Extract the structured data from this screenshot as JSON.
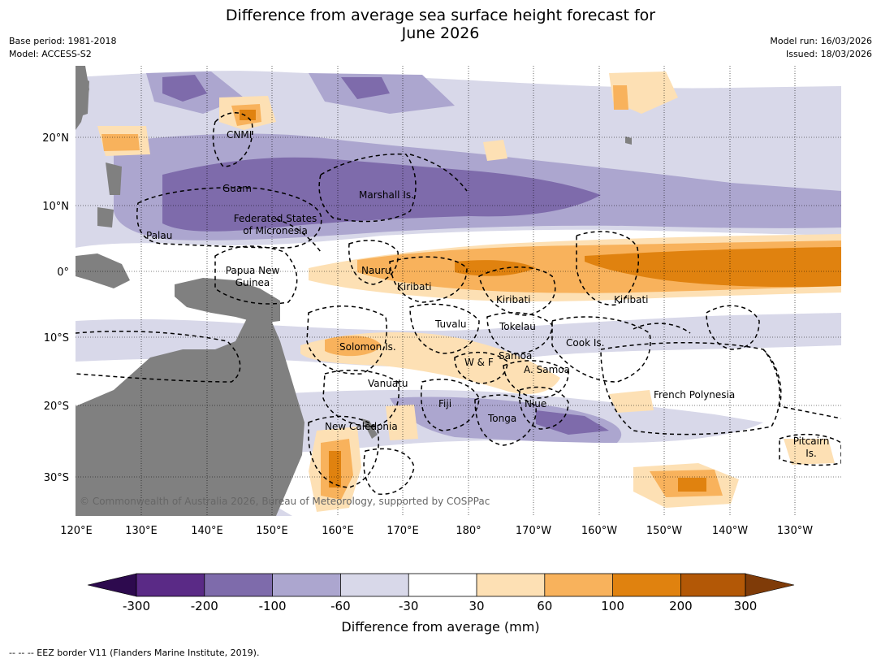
{
  "title": {
    "line1": "Difference from average sea surface height forecast for",
    "line2": "June 2026"
  },
  "meta": {
    "base_period": "Base period: 1981-2018",
    "model": "Model: ACCESS-S2",
    "model_run": "Model run: 16/03/2026",
    "issued": "Issued: 18/03/2026"
  },
  "colors": {
    "land": "#808080",
    "border": "#000000",
    "neg300": "#2d0a4e",
    "neg200": "#5a2a86",
    "neg100": "#7e6bab",
    "neg60": "#aca6cf",
    "neg30": "#d8d8e9",
    "neutral": "#ffffff",
    "pos30": "#fde0b4",
    "pos60": "#f8b25c",
    "pos100": "#e0820f",
    "pos200": "#b35806",
    "pos300": "#7f3b08"
  },
  "axes": {
    "lon_ticks": [
      "120°E",
      "130°E",
      "140°E",
      "150°E",
      "160°E",
      "170°E",
      "180°",
      "170°W",
      "160°W",
      "150°W",
      "140°W",
      "130°W"
    ],
    "lat_ticks": [
      "20°N",
      "10°N",
      "0°",
      "10°S",
      "20°S",
      "30°S"
    ]
  },
  "labels": {
    "cnmi": "CNMI",
    "guam": "Guam",
    "marshall": "Marshall Is.",
    "fsm1": "Federated States",
    "fsm2": "of Micronesia",
    "palau": "Palau",
    "png1": "Papua New",
    "png2": "Guinea",
    "nauru": "Nauru",
    "kiribati1": "Kiribati",
    "kiribati2": "Kiribati",
    "kiribati3": "Kiribati",
    "tuvalu": "Tuvalu",
    "tokelau": "Tokelau",
    "cook": "Cook Is.",
    "solomon": "Solomon Is.",
    "samoa": "Samoa",
    "wf": "W & F",
    "asamoa": "A. Samoa",
    "vanuatu": "Vanuatu",
    "fiji": "Fiji",
    "niue": "Niue",
    "tonga": "Tonga",
    "frpoly": "French Polynesia",
    "newcal": "New Caledonia",
    "pitcairn1": "Pitcairn",
    "pitcairn2": "Is."
  },
  "copyright": "© Commonwealth of Australia 2026, Bureau of Meteorology, supported by COSPPac",
  "colorbar": {
    "ticks": [
      "-300",
      "-200",
      "-100",
      "-60",
      "-30",
      "30",
      "60",
      "100",
      "200",
      "300"
    ],
    "label": "Difference from average (mm)"
  },
  "footnote": "-- -- -- EEZ border V11 (Flanders Marine Institute, 2019)."
}
